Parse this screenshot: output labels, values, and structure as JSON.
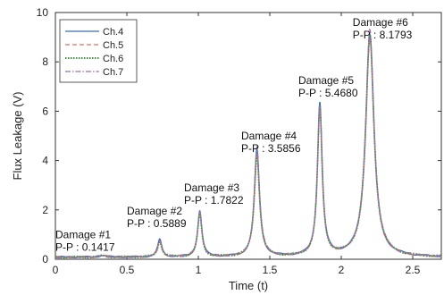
{
  "chart_data": {
    "type": "line",
    "title": "",
    "xlabel": "Time (t)",
    "ylabel": "Flux Leakage (V)",
    "xlim": [
      0,
      2.7
    ],
    "ylim": [
      0,
      10
    ],
    "xticks": [
      0,
      0.5,
      1,
      1.5,
      2,
      2.5
    ],
    "xtick_labels": [
      "0",
      "0.5",
      "1",
      "1.5",
      "2",
      "2.5"
    ],
    "yticks": [
      0,
      2,
      4,
      6,
      8,
      10
    ],
    "ytick_labels": [
      "0",
      "2",
      "4",
      "6",
      "8",
      "10"
    ],
    "grid": false,
    "legend_position": "top-left",
    "baseline": 0.08,
    "series": [
      {
        "name": "Ch.4",
        "color": "#3a6fb0",
        "dash": "solid",
        "peaks": [
          0.15,
          0.78,
          1.95,
          4.4,
          6.3,
          9.1
        ]
      },
      {
        "name": "Ch.5",
        "color": "#e07060",
        "dash": "dashed",
        "peaks": [
          0.14,
          0.72,
          1.85,
          4.2,
          6.05,
          8.85
        ]
      },
      {
        "name": "Ch.6",
        "color": "#3a9a3a",
        "dash": "dotted",
        "peaks": [
          0.13,
          0.7,
          1.8,
          4.25,
          6.1,
          9.05
        ]
      },
      {
        "name": "Ch.7",
        "color": "#9a6fae",
        "dash": "dashdot",
        "peaks": [
          0.14,
          0.74,
          1.9,
          4.55,
          6.15,
          9.3
        ]
      }
    ],
    "peak_positions": [
      0.33,
      0.73,
      1.01,
      1.41,
      1.85,
      2.2
    ],
    "peak_widths": [
      0.03,
      0.018,
      0.018,
      0.022,
      0.02,
      0.035
    ],
    "annotations": [
      {
        "label": "Damage #1",
        "value": "P-P : 0.1417",
        "x": 0.0,
        "y": 0.85
      },
      {
        "label": "Damage #2",
        "value": "P-P : 0.5889",
        "x": 0.5,
        "y": 1.82
      },
      {
        "label": "Damage #3",
        "value": "P-P : 1.7822",
        "x": 0.9,
        "y": 2.75
      },
      {
        "label": "Damage #4",
        "value": "P-P : 3.5856",
        "x": 1.3,
        "y": 4.85
      },
      {
        "label": "Damage #5",
        "value": "P-P : 5.4680",
        "x": 1.7,
        "y": 7.1
      },
      {
        "label": "Damage #6",
        "value": "P-P : 8.1793",
        "x": 2.08,
        "y": 9.45
      }
    ]
  }
}
